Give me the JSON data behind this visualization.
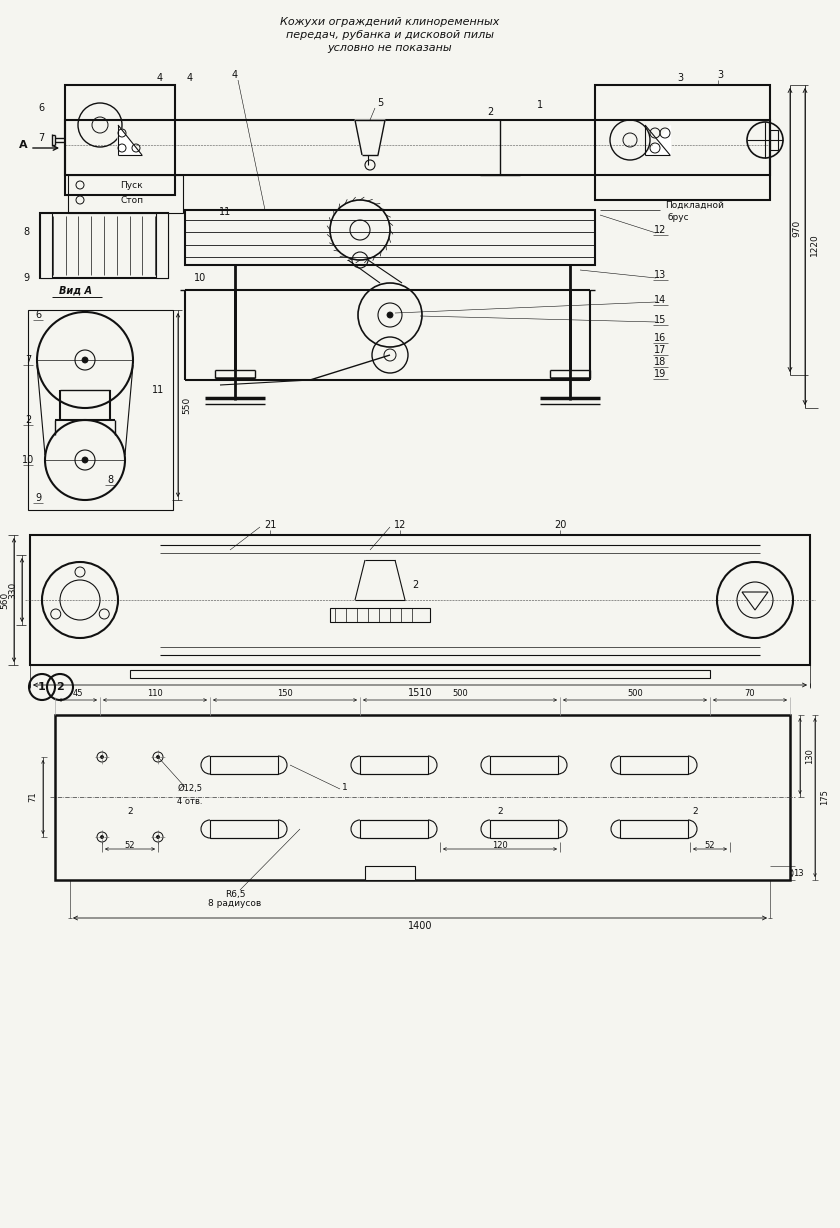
{
  "title_line1": "Кожухи ограждений клиноременных",
  "title_line2": "передач, рубанка и дисковой пилы",
  "title_line3": "условно не показаны",
  "pusk": "Пуск",
  "stop": "Стоп",
  "vid_a": "Вид А",
  "podkladnoy": "Подкладной",
  "brus": "брус",
  "r65": "R6,5",
  "r65b": "8 радиусов",
  "d125": "Ø12,5",
  "d125b": "4 отв.",
  "bg_color": "#f5f5f0",
  "line_color": "#111111",
  "text_color": "#111111"
}
